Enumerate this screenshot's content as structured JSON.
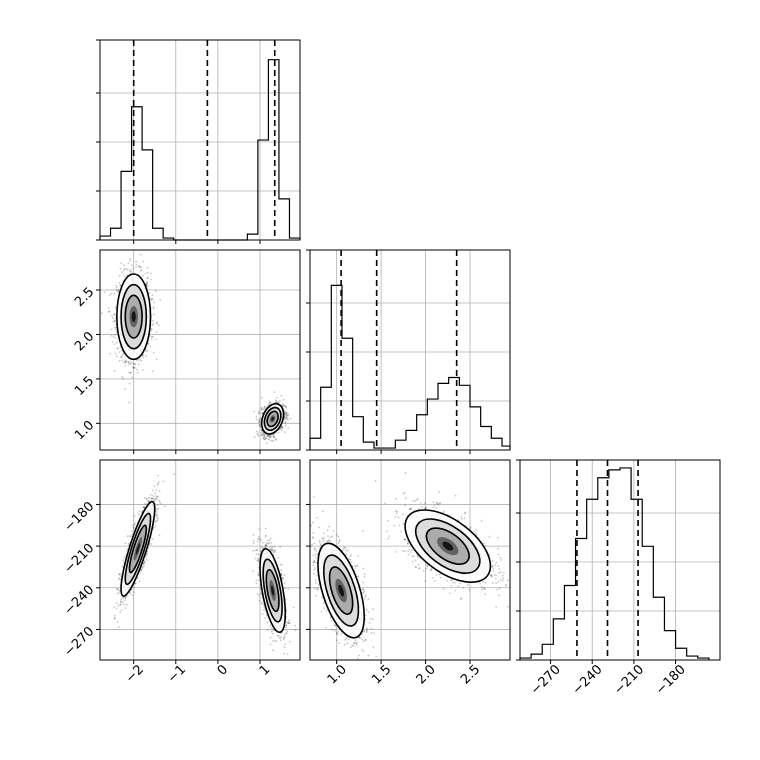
{
  "chart_data": {
    "type": "corner",
    "grid": true,
    "ticks": {
      "p0": [
        {
          "value": -2,
          "label": "−2"
        },
        {
          "value": -1,
          "label": "−1"
        },
        {
          "value": 0,
          "label": "0"
        },
        {
          "value": 1,
          "label": "1"
        }
      ],
      "p1": [
        {
          "value": 1.0,
          "label": "1.0"
        },
        {
          "value": 1.5,
          "label": "1.5"
        },
        {
          "value": 2.0,
          "label": "2.0"
        },
        {
          "value": 2.5,
          "label": "2.5"
        }
      ],
      "p2": [
        {
          "value": -270,
          "label": "−270"
        },
        {
          "value": -240,
          "label": "−240"
        },
        {
          "value": -210,
          "label": "−210"
        },
        {
          "value": -180,
          "label": "−180"
        }
      ]
    },
    "ranges": {
      "p0": [
        -2.8,
        1.95
      ],
      "p1": [
        0.7,
        2.95
      ],
      "p2": [
        -292,
        -148
      ]
    },
    "quantiles": {
      "p0": [
        -2.0,
        -0.25,
        1.35
      ],
      "p1": [
        1.05,
        1.45,
        2.35
      ],
      "p2": [
        -251,
        -229,
        -207
      ]
    },
    "histograms": {
      "p0": {
        "edges": [
          -2.8,
          -2.55,
          -2.3,
          -2.05,
          -1.8,
          -1.55,
          -1.3,
          -1.05,
          0.7,
          0.95,
          1.2,
          1.45,
          1.7,
          1.95
        ],
        "counts": [
          0.02,
          0.06,
          0.35,
          0.68,
          0.46,
          0.06,
          0.01,
          0,
          0.03,
          0.51,
          0.92,
          0.21,
          0.01
        ]
      },
      "p1": {
        "edges": [
          0.7,
          0.82,
          0.94,
          1.06,
          1.18,
          1.3,
          1.42,
          1.54,
          1.66,
          1.78,
          1.9,
          2.02,
          2.14,
          2.26,
          2.38,
          2.5,
          2.62,
          2.74,
          2.86,
          2.95
        ],
        "counts": [
          0.06,
          0.32,
          0.84,
          0.57,
          0.17,
          0.04,
          0.01,
          0.01,
          0.05,
          0.1,
          0.18,
          0.26,
          0.34,
          0.37,
          0.33,
          0.22,
          0.12,
          0.06,
          0.02
        ]
      },
      "p2": {
        "edges": [
          -292,
          -284,
          -276,
          -268,
          -260,
          -252,
          -244,
          -236,
          -228,
          -220,
          -212,
          -204,
          -196,
          -188,
          -180,
          -172,
          -164,
          -156
        ],
        "counts": [
          0.01,
          0.03,
          0.08,
          0.21,
          0.38,
          0.62,
          0.82,
          0.93,
          0.97,
          0.98,
          0.82,
          0.58,
          0.32,
          0.15,
          0.06,
          0.02,
          0.01
        ]
      }
    },
    "clusters": {
      "p1_vs_p0": [
        {
          "center": [
            -2.0,
            2.2
          ],
          "spread": [
            0.2,
            0.24
          ],
          "rho": 0.0
        },
        {
          "center": [
            1.3,
            1.05
          ],
          "spread": [
            0.13,
            0.085
          ],
          "rho": 0.3
        }
      ],
      "p2_vs_p0": [
        {
          "center": [
            -1.9,
            -212
          ],
          "spread": [
            0.2,
            17
          ],
          "rho": 0.85
        },
        {
          "center": [
            1.3,
            -242
          ],
          "spread": [
            0.15,
            15
          ],
          "rho": -0.55
        }
      ],
      "p2_vs_p1": [
        {
          "center": [
            1.05,
            -242
          ],
          "spread": [
            0.13,
            17
          ],
          "rho": -0.55
        },
        {
          "center": [
            2.25,
            -210
          ],
          "spread": [
            0.24,
            13
          ],
          "rho": -0.55
        }
      ]
    }
  }
}
